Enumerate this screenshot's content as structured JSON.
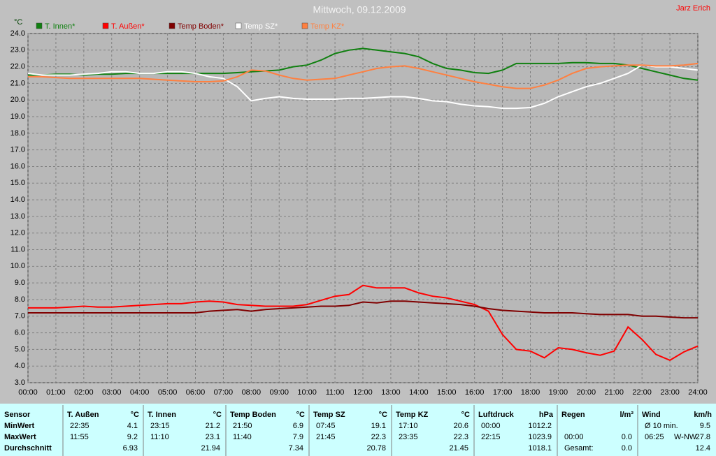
{
  "chart_data": {
    "type": "line",
    "title": "Mittwoch, 09.12.2009",
    "author": "Jarz Erich",
    "y_label": "°C",
    "x": [
      0,
      0.5,
      1,
      1.5,
      2,
      2.5,
      3,
      3.5,
      4,
      4.5,
      5,
      5.5,
      6,
      6.5,
      7,
      7.5,
      8,
      8.5,
      9,
      9.5,
      10,
      10.5,
      11,
      11.5,
      12,
      12.5,
      13,
      13.5,
      14,
      14.5,
      15,
      15.5,
      16,
      16.5,
      17,
      17.5,
      18,
      18.5,
      19,
      19.5,
      20,
      20.5,
      21,
      21.5,
      22,
      22.5,
      23,
      23.5,
      24
    ],
    "xlim": [
      0,
      24
    ],
    "xticks": [
      {
        "value": 0,
        "label": "00:00"
      },
      {
        "value": 1,
        "label": "01:00"
      },
      {
        "value": 2,
        "label": "02:00"
      },
      {
        "value": 3,
        "label": "03:00"
      },
      {
        "value": 4,
        "label": "04:00"
      },
      {
        "value": 5,
        "label": "05:00"
      },
      {
        "value": 6,
        "label": "06:00"
      },
      {
        "value": 7,
        "label": "07:00"
      },
      {
        "value": 8,
        "label": "08:00"
      },
      {
        "value": 9,
        "label": "09:00"
      },
      {
        "value": 10,
        "label": "10:00"
      },
      {
        "value": 11,
        "label": "11:00"
      },
      {
        "value": 12,
        "label": "12:00"
      },
      {
        "value": 13,
        "label": "13:00"
      },
      {
        "value": 14,
        "label": "14:00"
      },
      {
        "value": 15,
        "label": "15:00"
      },
      {
        "value": 16,
        "label": "16:00"
      },
      {
        "value": 17,
        "label": "17:00"
      },
      {
        "value": 18,
        "label": "18:00"
      },
      {
        "value": 19,
        "label": "19:00"
      },
      {
        "value": 20,
        "label": "20:00"
      },
      {
        "value": 21,
        "label": "21:00"
      },
      {
        "value": 22,
        "label": "22:00"
      },
      {
        "value": 23,
        "label": "23:00"
      },
      {
        "value": 24,
        "label": "24:00"
      }
    ],
    "ylim": [
      3,
      24
    ],
    "yticks": [
      {
        "value": 3,
        "label": "3.0"
      },
      {
        "value": 4,
        "label": "4.0"
      },
      {
        "value": 5,
        "label": "5.0"
      },
      {
        "value": 6,
        "label": "6.0"
      },
      {
        "value": 7,
        "label": "7.0"
      },
      {
        "value": 8,
        "label": "8.0"
      },
      {
        "value": 9,
        "label": "9.0"
      },
      {
        "value": 10,
        "label": "10.0"
      },
      {
        "value": 11,
        "label": "11.0"
      },
      {
        "value": 12,
        "label": "12.0"
      },
      {
        "value": 13,
        "label": "13.0"
      },
      {
        "value": 14,
        "label": "14.0"
      },
      {
        "value": 15,
        "label": "15.0"
      },
      {
        "value": 16,
        "label": "16.0"
      },
      {
        "value": 17,
        "label": "17.0"
      },
      {
        "value": 18,
        "label": "18.0"
      },
      {
        "value": 19,
        "label": "19.0"
      },
      {
        "value": 20,
        "label": "20.0"
      },
      {
        "value": 21,
        "label": "21.0"
      },
      {
        "value": 22,
        "label": "22.0"
      },
      {
        "value": 23,
        "label": "23.0"
      },
      {
        "value": 24,
        "label": "24.0"
      }
    ],
    "grid": true,
    "series": [
      {
        "name": "T. Innen*",
        "color": "#108010",
        "values": [
          21.5,
          21.5,
          21.55,
          21.55,
          21.5,
          21.55,
          21.55,
          21.6,
          21.6,
          21.6,
          21.6,
          21.6,
          21.6,
          21.6,
          21.6,
          21.65,
          21.7,
          21.75,
          21.8,
          22.0,
          22.1,
          22.4,
          22.8,
          23.0,
          23.1,
          23.0,
          22.9,
          22.8,
          22.6,
          22.2,
          21.9,
          21.8,
          21.65,
          21.6,
          21.8,
          22.2,
          22.2,
          22.2,
          22.2,
          22.25,
          22.25,
          22.2,
          22.2,
          22.1,
          21.9,
          21.7,
          21.5,
          21.3,
          21.2
        ]
      },
      {
        "name": "T. Außen*",
        "color": "#ff0000",
        "values": [
          7.5,
          7.5,
          7.5,
          7.55,
          7.6,
          7.55,
          7.55,
          7.6,
          7.65,
          7.7,
          7.75,
          7.75,
          7.85,
          7.9,
          7.85,
          7.7,
          7.65,
          7.6,
          7.6,
          7.6,
          7.7,
          7.95,
          8.2,
          8.3,
          8.85,
          8.7,
          8.7,
          8.7,
          8.4,
          8.2,
          8.1,
          7.9,
          7.7,
          7.3,
          5.9,
          5.0,
          4.9,
          4.5,
          5.1,
          5.0,
          4.8,
          4.65,
          4.9,
          6.35,
          5.6,
          4.7,
          4.35,
          4.85,
          5.2
        ]
      },
      {
        "name": "Temp Boden*",
        "color": "#800000",
        "values": [
          7.2,
          7.2,
          7.2,
          7.2,
          7.2,
          7.2,
          7.2,
          7.2,
          7.2,
          7.2,
          7.2,
          7.2,
          7.2,
          7.3,
          7.35,
          7.4,
          7.3,
          7.4,
          7.45,
          7.5,
          7.55,
          7.6,
          7.6,
          7.65,
          7.85,
          7.8,
          7.9,
          7.9,
          7.85,
          7.8,
          7.75,
          7.7,
          7.6,
          7.45,
          7.35,
          7.3,
          7.25,
          7.2,
          7.2,
          7.2,
          7.15,
          7.1,
          7.1,
          7.1,
          7.0,
          7.0,
          6.95,
          6.9,
          6.9
        ]
      },
      {
        "name": "Temp SZ*",
        "color": "#ffffff",
        "values": [
          21.6,
          21.5,
          21.5,
          21.5,
          21.55,
          21.6,
          21.7,
          21.7,
          21.6,
          21.6,
          21.7,
          21.7,
          21.6,
          21.4,
          21.3,
          20.8,
          19.95,
          20.1,
          20.2,
          20.1,
          20.05,
          20.05,
          20.05,
          20.1,
          20.1,
          20.15,
          20.2,
          20.2,
          20.1,
          19.95,
          19.9,
          19.75,
          19.65,
          19.6,
          19.5,
          19.5,
          19.55,
          19.8,
          20.2,
          20.5,
          20.8,
          21.0,
          21.3,
          21.6,
          22.1,
          22.0,
          22.0,
          21.9,
          21.8
        ]
      },
      {
        "name": "Temp KZ*",
        "color": "#ff8040",
        "values": [
          21.4,
          21.4,
          21.35,
          21.3,
          21.3,
          21.3,
          21.3,
          21.3,
          21.3,
          21.25,
          21.2,
          21.15,
          21.1,
          21.1,
          21.15,
          21.4,
          21.8,
          21.75,
          21.5,
          21.3,
          21.2,
          21.25,
          21.3,
          21.5,
          21.7,
          21.9,
          22.0,
          22.05,
          21.9,
          21.7,
          21.5,
          21.3,
          21.1,
          20.95,
          20.8,
          20.7,
          20.7,
          20.9,
          21.2,
          21.6,
          21.9,
          22.0,
          22.05,
          22.1,
          22.1,
          22.05,
          22.05,
          22.1,
          22.2
        ]
      }
    ]
  },
  "table": {
    "sensor_header": "Sensor",
    "row_labels": [
      "MinWert",
      "MaxWert",
      "Durchschnitt"
    ],
    "groups": [
      {
        "name": "T. Außen",
        "unit": "°C",
        "rows": [
          {
            "time": "22:35",
            "value": "4.1"
          },
          {
            "time": "11:55",
            "value": "9.2"
          },
          {
            "value": "6.93"
          }
        ]
      },
      {
        "name": "T. Innen",
        "unit": "°C",
        "rows": [
          {
            "time": "23:15",
            "value": "21.2"
          },
          {
            "time": "11:10",
            "value": "23.1"
          },
          {
            "value": "21.94"
          }
        ]
      },
      {
        "name": "Temp Boden",
        "unit": "°C",
        "rows": [
          {
            "time": "21:50",
            "value": "6.9"
          },
          {
            "time": "11:40",
            "value": "7.9"
          },
          {
            "value": "7.34"
          }
        ]
      },
      {
        "name": "Temp SZ",
        "unit": "°C",
        "rows": [
          {
            "time": "07:45",
            "value": "19.1"
          },
          {
            "time": "21:45",
            "value": "22.3"
          },
          {
            "value": "20.78"
          }
        ]
      },
      {
        "name": "Temp KZ",
        "unit": "°C",
        "rows": [
          {
            "time": "17:10",
            "value": "20.6"
          },
          {
            "time": "23:35",
            "value": "22.3"
          },
          {
            "value": "21.45"
          }
        ]
      },
      {
        "name": "Luftdruck",
        "unit": "hPa",
        "rows": [
          {
            "time": "00:00",
            "value": "1012.2"
          },
          {
            "time": "22:15",
            "value": "1023.9"
          },
          {
            "value": "1018.1"
          }
        ]
      },
      {
        "name": "Regen",
        "unit": "l/m²",
        "rows": [
          null,
          {
            "time": "00:00",
            "value": "0.0"
          },
          {
            "time": "Gesamt:",
            "value": "0.0"
          }
        ]
      },
      {
        "name": "Wind",
        "unit": "km/h",
        "rows": [
          {
            "time": "Ø 10 min.",
            "value": "9.5"
          },
          {
            "time": "06:25",
            "dir": "W-NW",
            "value": "27.8"
          },
          {
            "value": "12.4"
          }
        ]
      }
    ]
  }
}
